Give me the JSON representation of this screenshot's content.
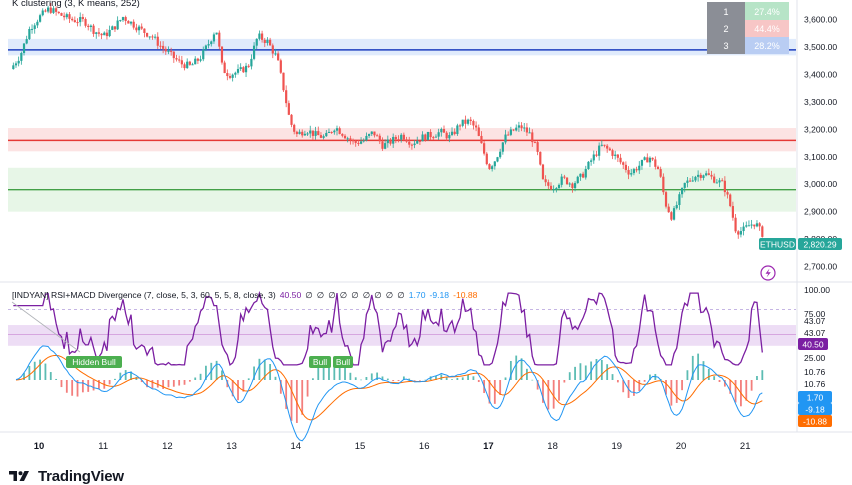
{
  "main_title": "K clustering (3, K means, 252)",
  "symbol_label": "ETHUSD",
  "price_label": "2,820.29",
  "clusters": {
    "headers": [
      "1",
      "2",
      "3"
    ],
    "values": [
      "27.4%",
      "44.4%",
      "28.2%"
    ],
    "colors": [
      "#b7e4c7",
      "#f7c6c6",
      "#b9cdf3"
    ]
  },
  "indicator_title": "[INDYAN] RSI+MACD Divergence (7, close, 5, 3, 60, 5, 5, 8, close, 3)",
  "indicator_values": [
    "40.50",
    "∅",
    "∅",
    "∅",
    "∅",
    "∅",
    "∅",
    "∅",
    "∅",
    "∅",
    "1.70",
    "-9.18",
    "-10.88"
  ],
  "indicator_value_colors": [
    "#7b1fa2",
    "#131722",
    "#131722",
    "#131722",
    "#131722",
    "#131722",
    "#131722",
    "#131722",
    "#131722",
    "#131722",
    "#2196f3",
    "#2196f3",
    "#ff6d00"
  ],
  "divergence_labels": [
    "Hidden Bull",
    "Bull",
    "Bull"
  ],
  "price_axis_ticks": [
    "3,600.00",
    "3,500.00",
    "3,400.00",
    "3,300.00",
    "3,200.00",
    "3,100.00",
    "3,000.00",
    "2,900.00",
    "2,800.00",
    "2,700.00"
  ],
  "rsi_axis_ticks": [
    "100.00",
    "75.00",
    "43.07",
    "43.07",
    "25.00",
    "10.76",
    "10.76"
  ],
  "rsi_badge": "40.50",
  "macd_badges": [
    "1.70",
    "-9.18",
    "-10.88"
  ],
  "macd_badge_colors": [
    "#2196f3",
    "#2196f3",
    "#ff6d00"
  ],
  "x_axis_labels": [
    "10",
    "11",
    "12",
    "13",
    "14",
    "15",
    "16",
    "17",
    "18",
    "19",
    "20",
    "21"
  ],
  "x_axis_bold": [
    "10",
    "17"
  ],
  "brand": "TradingView",
  "colors": {
    "up": "#26a69a",
    "down": "#ef5350",
    "rsi": "#7b1fa2",
    "macd": "#2196f3",
    "signal": "#ff6d00",
    "blue_level": "#1e3fbf",
    "red_level": "#e53935",
    "green_level": "#43a047"
  },
  "chart_data": {
    "type": "candlestick",
    "title": "K clustering (3, K means, 252)",
    "symbol": "ETHUSD",
    "last_price": 2820.29,
    "ylim": [
      2680,
      3650
    ],
    "levels": [
      {
        "price": 3490,
        "color": "blue",
        "band": [
          3470,
          3530
        ]
      },
      {
        "price": 3160,
        "color": "red",
        "band": [
          3120,
          3205
        ]
      },
      {
        "price": 2980,
        "color": "green",
        "band": [
          2900,
          3060
        ]
      }
    ],
    "price_path": [
      [
        9.6,
        3420
      ],
      [
        9.75,
        3470
      ],
      [
        9.9,
        3570
      ],
      [
        10.05,
        3610
      ],
      [
        10.2,
        3640
      ],
      [
        10.35,
        3620
      ],
      [
        10.55,
        3600
      ],
      [
        10.75,
        3595
      ],
      [
        10.9,
        3560
      ],
      [
        11.05,
        3540
      ],
      [
        11.2,
        3570
      ],
      [
        11.35,
        3610
      ],
      [
        11.5,
        3585
      ],
      [
        11.65,
        3560
      ],
      [
        11.8,
        3540
      ],
      [
        11.95,
        3500
      ],
      [
        12.1,
        3470
      ],
      [
        12.25,
        3440
      ],
      [
        12.4,
        3430
      ],
      [
        12.55,
        3460
      ],
      [
        12.7,
        3520
      ],
      [
        12.8,
        3570
      ],
      [
        12.9,
        3420
      ],
      [
        13.0,
        3400
      ],
      [
        13.15,
        3410
      ],
      [
        13.3,
        3430
      ],
      [
        13.45,
        3540
      ],
      [
        13.6,
        3520
      ],
      [
        13.75,
        3460
      ],
      [
        13.85,
        3350
      ],
      [
        13.95,
        3230
      ],
      [
        14.05,
        3180
      ],
      [
        14.2,
        3200
      ],
      [
        14.35,
        3180
      ],
      [
        14.5,
        3170
      ],
      [
        14.65,
        3210
      ],
      [
        14.8,
        3180
      ],
      [
        14.95,
        3150
      ],
      [
        15.1,
        3160
      ],
      [
        15.25,
        3190
      ],
      [
        15.4,
        3140
      ],
      [
        15.55,
        3160
      ],
      [
        15.7,
        3180
      ],
      [
        15.85,
        3150
      ],
      [
        16.0,
        3170
      ],
      [
        16.15,
        3180
      ],
      [
        16.3,
        3190
      ],
      [
        16.45,
        3170
      ],
      [
        16.6,
        3220
      ],
      [
        16.75,
        3230
      ],
      [
        16.85,
        3200
      ],
      [
        16.95,
        3130
      ],
      [
        17.05,
        3060
      ],
      [
        17.15,
        3090
      ],
      [
        17.3,
        3170
      ],
      [
        17.45,
        3200
      ],
      [
        17.55,
        3210
      ],
      [
        17.7,
        3180
      ],
      [
        17.8,
        3120
      ],
      [
        17.9,
        3000
      ],
      [
        18.05,
        2990
      ],
      [
        18.2,
        3020
      ],
      [
        18.35,
        3000
      ],
      [
        18.5,
        3030
      ],
      [
        18.65,
        3090
      ],
      [
        18.8,
        3140
      ],
      [
        18.95,
        3120
      ],
      [
        19.1,
        3080
      ],
      [
        19.25,
        3040
      ],
      [
        19.4,
        3070
      ],
      [
        19.55,
        3100
      ],
      [
        19.7,
        3050
      ],
      [
        19.8,
        2930
      ],
      [
        19.9,
        2880
      ],
      [
        20.0,
        2940
      ],
      [
        20.1,
        3000
      ],
      [
        20.25,
        3030
      ],
      [
        20.4,
        3040
      ],
      [
        20.55,
        3020
      ],
      [
        20.7,
        3000
      ],
      [
        20.8,
        2930
      ],
      [
        20.9,
        2830
      ],
      [
        21.0,
        2830
      ],
      [
        21.1,
        2850
      ],
      [
        21.2,
        2860
      ],
      [
        21.3,
        2820
      ]
    ],
    "rsi": {
      "ylim": [
        0,
        100
      ],
      "levels": [
        75,
        43.07,
        25,
        10.76
      ],
      "last": 40.5
    },
    "macd": {
      "macd_last": 1.7,
      "signal_last": -9.18,
      "histogram_last": -10.88
    },
    "x_tick_labels": [
      "10",
      "11",
      "12",
      "13",
      "14",
      "15",
      "16",
      "17",
      "18",
      "19",
      "20",
      "21"
    ],
    "cluster_percentages": [
      27.4,
      44.4,
      28.2
    ]
  }
}
